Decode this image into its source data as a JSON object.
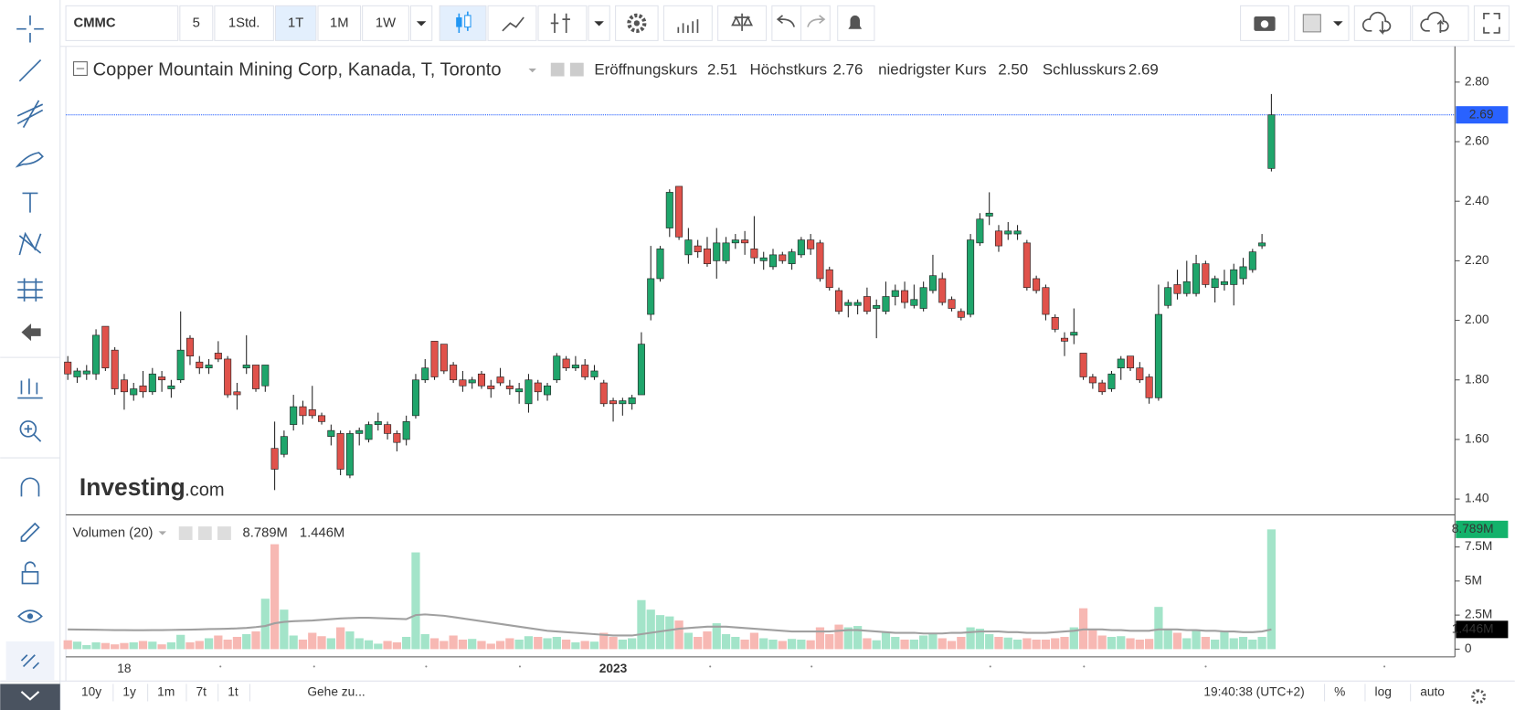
{
  "toolbar": {
    "symbol": "CMMC",
    "intervals": [
      "5",
      "1Std.",
      "1T",
      "1M",
      "1W"
    ],
    "active_interval_index": 2
  },
  "bottom_bar": {
    "ranges": [
      "10y",
      "1y",
      "1m",
      "7t",
      "1t"
    ],
    "goto": "Gehe zu...",
    "clock": "19:40:38 (UTC+2)",
    "scale_options": [
      "%",
      "log",
      "auto"
    ],
    "active_scale_index": 2
  },
  "logo": {
    "brand": "Investing",
    "suffix": ".com"
  },
  "chart_data": {
    "type": "candlestick",
    "title": "Copper Mountain Mining Corp, Kanada, T, Toronto",
    "ohlc_names": [
      "Eröffnungskurs",
      "Höchstkurs",
      "niedrigster Kurs",
      "Schlusskurs"
    ],
    "last_value_labels": [
      "2.51",
      "2.76",
      "2.50",
      "2.69"
    ],
    "up_color": "#1fa56b",
    "down_color": "#e0524b",
    "volume_up_color": "#a3e4c9",
    "volume_down_color": "#f7b8b3",
    "ma_color": "#a0a0a0",
    "last_price_color": "#2962ff",
    "categories": [
      null,
      null,
      null,
      null,
      null,
      null,
      "18",
      null,
      null,
      null,
      null,
      null,
      null,
      null,
      null,
      null,
      null,
      null,
      null,
      null,
      null,
      null,
      null,
      null,
      null,
      null,
      null,
      null,
      null,
      null,
      null,
      null,
      null,
      null,
      null,
      null,
      null,
      null,
      null,
      null,
      null,
      null,
      null,
      null,
      null,
      null,
      null,
      null,
      null,
      null,
      null,
      null,
      null,
      null,
      null,
      null,
      null,
      null,
      "2023",
      null,
      null,
      null,
      null,
      null,
      null,
      null,
      null,
      null,
      null,
      null,
      null,
      null,
      null,
      null,
      null,
      null,
      null,
      null,
      null,
      null,
      null,
      null,
      null,
      null,
      null,
      null,
      null,
      null,
      null,
      null,
      null,
      null,
      null,
      null,
      null,
      null,
      null,
      null,
      null,
      null,
      null,
      null,
      null,
      null,
      null,
      null,
      null,
      null,
      null,
      null,
      null,
      null,
      null,
      null,
      null,
      null,
      null,
      null,
      null,
      null,
      null,
      null,
      null,
      null,
      null,
      null,
      null,
      null,
      null
    ],
    "ohlc": [
      [
        1.86,
        1.88,
        1.8,
        1.82
      ],
      [
        1.81,
        1.84,
        1.79,
        1.83
      ],
      [
        1.82,
        1.85,
        1.8,
        1.83
      ],
      [
        1.82,
        1.97,
        1.8,
        1.95
      ],
      [
        1.98,
        1.98,
        1.83,
        1.84
      ],
      [
        1.9,
        1.91,
        1.75,
        1.77
      ],
      [
        1.8,
        1.82,
        1.7,
        1.76
      ],
      [
        1.75,
        1.79,
        1.73,
        1.77
      ],
      [
        1.78,
        1.83,
        1.74,
        1.76
      ],
      [
        1.76,
        1.84,
        1.75,
        1.82
      ],
      [
        1.81,
        1.83,
        1.76,
        1.8
      ],
      [
        1.77,
        1.8,
        1.74,
        1.78
      ],
      [
        1.8,
        2.03,
        1.79,
        1.9
      ],
      [
        1.94,
        1.95,
        1.85,
        1.88
      ],
      [
        1.86,
        1.88,
        1.82,
        1.84
      ],
      [
        1.84,
        1.87,
        1.82,
        1.85
      ],
      [
        1.89,
        1.93,
        1.86,
        1.87
      ],
      [
        1.87,
        1.88,
        1.74,
        1.75
      ],
      [
        1.76,
        1.79,
        1.7,
        1.75
      ],
      [
        1.84,
        1.95,
        1.82,
        1.85
      ],
      [
        1.85,
        1.85,
        1.76,
        1.77
      ],
      [
        1.78,
        1.85,
        1.76,
        1.85
      ],
      [
        1.57,
        1.66,
        1.43,
        1.5
      ],
      [
        1.55,
        1.63,
        1.54,
        1.61
      ],
      [
        1.65,
        1.75,
        1.63,
        1.71
      ],
      [
        1.71,
        1.73,
        1.65,
        1.68
      ],
      [
        1.7,
        1.78,
        1.67,
        1.68
      ],
      [
        1.68,
        1.69,
        1.65,
        1.66
      ],
      [
        1.61,
        1.65,
        1.58,
        1.63
      ],
      [
        1.62,
        1.63,
        1.48,
        1.5
      ],
      [
        1.48,
        1.63,
        1.47,
        1.62
      ],
      [
        1.62,
        1.64,
        1.58,
        1.63
      ],
      [
        1.6,
        1.66,
        1.59,
        1.65
      ],
      [
        1.65,
        1.69,
        1.63,
        1.66
      ],
      [
        1.65,
        1.66,
        1.6,
        1.62
      ],
      [
        1.62,
        1.63,
        1.56,
        1.59
      ],
      [
        1.6,
        1.68,
        1.58,
        1.66
      ],
      [
        1.68,
        1.82,
        1.67,
        1.8
      ],
      [
        1.8,
        1.87,
        1.79,
        1.84
      ],
      [
        1.93,
        1.93,
        1.8,
        1.81
      ],
      [
        1.92,
        1.92,
        1.82,
        1.83
      ],
      [
        1.85,
        1.86,
        1.79,
        1.8
      ],
      [
        1.8,
        1.83,
        1.76,
        1.78
      ],
      [
        1.79,
        1.81,
        1.77,
        1.8
      ],
      [
        1.82,
        1.83,
        1.77,
        1.78
      ],
      [
        1.78,
        1.8,
        1.74,
        1.77
      ],
      [
        1.81,
        1.84,
        1.78,
        1.79
      ],
      [
        1.78,
        1.8,
        1.75,
        1.77
      ],
      [
        1.76,
        1.79,
        1.72,
        1.77
      ],
      [
        1.72,
        1.82,
        1.69,
        1.8
      ],
      [
        1.79,
        1.8,
        1.73,
        1.76
      ],
      [
        1.75,
        1.79,
        1.73,
        1.78
      ],
      [
        1.8,
        1.89,
        1.79,
        1.88
      ],
      [
        1.87,
        1.88,
        1.83,
        1.84
      ],
      [
        1.84,
        1.88,
        1.83,
        1.85
      ],
      [
        1.85,
        1.87,
        1.8,
        1.81
      ],
      [
        1.81,
        1.85,
        1.8,
        1.83
      ],
      [
        1.79,
        1.8,
        1.71,
        1.72
      ],
      [
        1.73,
        1.74,
        1.66,
        1.72
      ],
      [
        1.72,
        1.74,
        1.68,
        1.73
      ],
      [
        1.72,
        1.75,
        1.7,
        1.74
      ],
      [
        1.75,
        1.96,
        1.75,
        1.92
      ],
      [
        2.02,
        2.25,
        2.0,
        2.14
      ],
      [
        2.14,
        2.25,
        2.13,
        2.24
      ],
      [
        2.31,
        2.44,
        2.28,
        2.43
      ],
      [
        2.45,
        2.45,
        2.27,
        2.28
      ],
      [
        2.22,
        2.31,
        2.19,
        2.27
      ],
      [
        2.25,
        2.27,
        2.21,
        2.23
      ],
      [
        2.24,
        2.28,
        2.18,
        2.19
      ],
      [
        2.2,
        2.31,
        2.14,
        2.26
      ],
      [
        2.2,
        2.28,
        2.19,
        2.26
      ],
      [
        2.26,
        2.29,
        2.24,
        2.27
      ],
      [
        2.27,
        2.3,
        2.22,
        2.26
      ],
      [
        2.24,
        2.35,
        2.19,
        2.21
      ],
      [
        2.2,
        2.23,
        2.17,
        2.21
      ],
      [
        2.18,
        2.24,
        2.17,
        2.22
      ],
      [
        2.22,
        2.23,
        2.19,
        2.2
      ],
      [
        2.19,
        2.24,
        2.17,
        2.23
      ],
      [
        2.22,
        2.28,
        2.21,
        2.27
      ],
      [
        2.27,
        2.29,
        2.22,
        2.24
      ],
      [
        2.26,
        2.27,
        2.13,
        2.14
      ],
      [
        2.17,
        2.18,
        2.1,
        2.11
      ],
      [
        2.1,
        2.11,
        2.02,
        2.03
      ],
      [
        2.05,
        2.07,
        2.01,
        2.06
      ],
      [
        2.05,
        2.07,
        2.02,
        2.06
      ],
      [
        2.08,
        2.11,
        2.02,
        2.03
      ],
      [
        2.04,
        2.07,
        1.94,
        2.05
      ],
      [
        2.03,
        2.13,
        2.02,
        2.08
      ],
      [
        2.08,
        2.12,
        2.05,
        2.1
      ],
      [
        2.1,
        2.13,
        2.04,
        2.06
      ],
      [
        2.05,
        2.12,
        2.04,
        2.07
      ],
      [
        2.04,
        2.13,
        2.03,
        2.11
      ],
      [
        2.1,
        2.22,
        2.09,
        2.15
      ],
      [
        2.14,
        2.16,
        2.05,
        2.06
      ],
      [
        2.07,
        2.08,
        2.03,
        2.04
      ],
      [
        2.03,
        2.04,
        2.0,
        2.01
      ],
      [
        2.02,
        2.29,
        2.01,
        2.27
      ],
      [
        2.26,
        2.36,
        2.25,
        2.34
      ],
      [
        2.35,
        2.43,
        2.32,
        2.36
      ],
      [
        2.3,
        2.32,
        2.23,
        2.25
      ],
      [
        2.29,
        2.33,
        2.27,
        2.3
      ],
      [
        2.29,
        2.32,
        2.27,
        2.3
      ],
      [
        2.26,
        2.27,
        2.1,
        2.11
      ],
      [
        2.14,
        2.15,
        2.09,
        2.1
      ],
      [
        2.11,
        2.12,
        2.0,
        2.02
      ],
      [
        2.01,
        2.02,
        1.96,
        1.97
      ],
      [
        1.94,
        1.96,
        1.88,
        1.93
      ],
      [
        1.95,
        2.04,
        1.92,
        1.96
      ],
      [
        1.89,
        1.89,
        1.8,
        1.81
      ],
      [
        1.81,
        1.82,
        1.77,
        1.79
      ],
      [
        1.79,
        1.8,
        1.75,
        1.76
      ],
      [
        1.77,
        1.83,
        1.76,
        1.82
      ],
      [
        1.84,
        1.88,
        1.8,
        1.87
      ],
      [
        1.88,
        1.88,
        1.83,
        1.84
      ],
      [
        1.84,
        1.86,
        1.79,
        1.8
      ],
      [
        1.81,
        1.82,
        1.72,
        1.74
      ],
      [
        1.74,
        2.12,
        1.73,
        2.02
      ],
      [
        2.05,
        2.13,
        2.04,
        2.11
      ],
      [
        2.12,
        2.17,
        2.07,
        2.09
      ],
      [
        2.09,
        2.2,
        2.08,
        2.13
      ],
      [
        2.09,
        2.22,
        2.08,
        2.19
      ],
      [
        2.19,
        2.2,
        2.11,
        2.12
      ],
      [
        2.11,
        2.15,
        2.06,
        2.14
      ],
      [
        2.12,
        2.17,
        2.1,
        2.13
      ],
      [
        2.12,
        2.19,
        2.05,
        2.17
      ],
      [
        2.14,
        2.21,
        2.12,
        2.18
      ],
      [
        2.17,
        2.24,
        2.16,
        2.23
      ],
      [
        2.25,
        2.29,
        2.24,
        2.26
      ],
      [
        2.51,
        2.76,
        2.5,
        2.69
      ]
    ],
    "ylim": [
      1.35,
      2.92
    ],
    "yticks": [
      {
        "value": 1.4,
        "label": "1.40"
      },
      {
        "value": 1.6,
        "label": "1.60"
      },
      {
        "value": 1.8,
        "label": "1.80"
      },
      {
        "value": 2.0,
        "label": "2.00"
      },
      {
        "value": 2.2,
        "label": "2.20"
      },
      {
        "value": 2.4,
        "label": "2.40"
      },
      {
        "value": 2.6,
        "label": "2.60"
      },
      {
        "value": 2.8,
        "label": "2.80"
      }
    ],
    "volume_title": "Volumen (20)",
    "volume": [
      650000,
      550000,
      300000,
      500000,
      450000,
      350000,
      450000,
      500000,
      600000,
      550000,
      350000,
      500000,
      1050000,
      500000,
      600000,
      800000,
      1000000,
      700000,
      900000,
      1100000,
      1300000,
      3700000,
      7700000,
      2900000,
      1000000,
      700000,
      1200000,
      950000,
      800000,
      1600000,
      1300000,
      800000,
      650000,
      400000,
      600000,
      500000,
      900000,
      7100000,
      1100000,
      800000,
      600000,
      1000000,
      700000,
      750000,
      600000,
      400000,
      600000,
      800000,
      700000,
      950000,
      900000,
      800000,
      900000,
      700000,
      500000,
      600000,
      550000,
      1200000,
      900000,
      700000,
      800000,
      3600000,
      2900000,
      2500000,
      2400000,
      2100000,
      1200000,
      900000,
      1300000,
      1900000,
      1100000,
      900000,
      700000,
      1200000,
      800000,
      700000,
      600000,
      750000,
      700000,
      650000,
      1600000,
      1100000,
      1800000,
      1600000,
      1700000,
      800000,
      650000,
      1200000,
      900000,
      700000,
      700000,
      1000000,
      1100000,
      800000,
      600000,
      900000,
      1600000,
      1500000,
      1100000,
      900000,
      850000,
      700000,
      800000,
      700000,
      700000,
      800000,
      900000,
      1600000,
      3000000,
      1400000,
      1000000,
      900000,
      950000,
      800000,
      700000,
      750000,
      3100000,
      1500000,
      1200000,
      800000,
      1400000,
      900000,
      700000,
      1300000,
      800000,
      900000,
      700000,
      900000,
      8789000
    ],
    "volume_ma": [
      1450000,
      1440000,
      1430000,
      1420000,
      1410000,
      1400000,
      1400000,
      1390000,
      1390000,
      1400000,
      1400000,
      1410000,
      1420000,
      1430000,
      1450000,
      1470000,
      1480000,
      1500000,
      1520000,
      1560000,
      1620000,
      1700000,
      1900000,
      2000000,
      2050000,
      2080000,
      2100000,
      2150000,
      2200000,
      2250000,
      2280000,
      2300000,
      2300000,
      2280000,
      2250000,
      2230000,
      2200000,
      2500000,
      2550000,
      2500000,
      2450000,
      2350000,
      2250000,
      2150000,
      2050000,
      1950000,
      1850000,
      1750000,
      1650000,
      1550000,
      1450000,
      1350000,
      1300000,
      1250000,
      1200000,
      1150000,
      1100000,
      1050000,
      1000000,
      1000000,
      1000000,
      1100000,
      1200000,
      1300000,
      1400000,
      1500000,
      1550000,
      1600000,
      1650000,
      1650000,
      1650000,
      1600000,
      1550000,
      1500000,
      1450000,
      1400000,
      1350000,
      1300000,
      1300000,
      1300000,
      1300000,
      1300000,
      1350000,
      1400000,
      1400000,
      1350000,
      1300000,
      1250000,
      1200000,
      1200000,
      1200000,
      1150000,
      1150000,
      1150000,
      1200000,
      1200000,
      1250000,
      1300000,
      1300000,
      1300000,
      1250000,
      1250000,
      1200000,
      1200000,
      1200000,
      1250000,
      1300000,
      1350000,
      1450000,
      1450000,
      1450000,
      1400000,
      1400000,
      1350000,
      1350000,
      1350000,
      1450000,
      1450000,
      1450000,
      1400000,
      1400000,
      1350000,
      1350000,
      1300000,
      1300000,
      1250000,
      1250000,
      1300000,
      1446000
    ],
    "volume_label": "8.789M",
    "volume_ma_label": "1.446M",
    "volume_ylim": [
      0,
      9500000
    ],
    "volume_yticks": [
      0,
      {
        "value": 2500000,
        "label": "2.5M"
      },
      {
        "value": 5000000,
        "label": "5M"
      },
      {
        "value": 7500000,
        "label": "7.5M"
      }
    ]
  }
}
